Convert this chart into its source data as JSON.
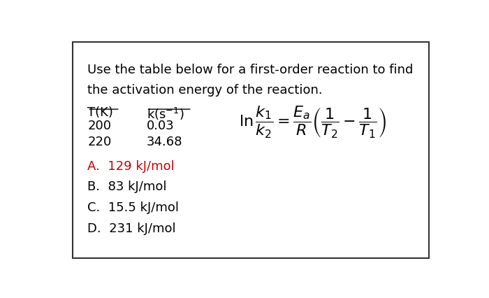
{
  "title_line1": "Use the table below for a first-order reaction to find",
  "title_line2": "the activation energy of the reaction.",
  "col1_header": "T(K)",
  "col2_header": "k(s⁻¹)",
  "row1": [
    "200",
    "0.03"
  ],
  "row2": [
    "220",
    "34.68"
  ],
  "answer_A": "A.  129 kJ/mol",
  "answer_B": "B.  83 kJ/mol",
  "answer_C": "C.  15.5 kJ/mol",
  "answer_D": "D.  231 kJ/mol",
  "answer_color": "#CC0000",
  "text_color": "#000000",
  "bg_color": "#ffffff",
  "border_color": "#333333",
  "font_size_title": 13,
  "font_size_table": 13,
  "font_size_answers": 13,
  "font_size_formula": 16
}
